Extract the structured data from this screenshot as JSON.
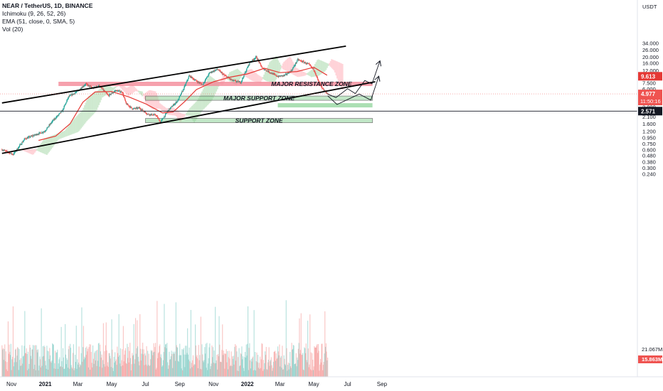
{
  "legend": {
    "symbol": "NEAR / TetherUS, 1D, BINANCE",
    "indicators": [
      "Ichimoku (9, 26, 52, 26)",
      "EMA (51, close, 0, SMA, 5)",
      "Vol (20)"
    ]
  },
  "chart_data": {
    "type": "candlestick",
    "scale": "log",
    "currency_label": "USDT",
    "yticks": [
      "34.000",
      "26.000",
      "20.000",
      "16.000",
      "12.000",
      "9.500",
      "7.500",
      "6.000",
      "4.800",
      "3.800",
      "3.000",
      "2.700",
      "2.100",
      "1.600",
      "1.200",
      "0.950",
      "0.750",
      "0.600",
      "0.480",
      "0.380",
      "0.300",
      "0.240"
    ],
    "ytick_values": [
      34,
      26,
      20,
      16,
      12,
      9.5,
      7.5,
      6,
      4.8,
      3.8,
      3.0,
      2.7,
      2.1,
      1.6,
      1.2,
      0.95,
      0.75,
      0.6,
      0.48,
      0.38,
      0.3,
      0.24
    ],
    "xticks": [
      "Nov",
      "2021",
      "Mar",
      "May",
      "Jul",
      "Sep",
      "Nov",
      "2022",
      "Mar",
      "May",
      "Jul",
      "Sep"
    ],
    "xtick_dates": [
      "2020-11-01",
      "2021-01-01",
      "2021-03-01",
      "2021-05-01",
      "2021-07-01",
      "2021-09-01",
      "2021-11-01",
      "2022-01-01",
      "2022-03-01",
      "2022-05-01",
      "2022-07-01",
      "2022-09-01"
    ],
    "price_path": [
      [
        "2020-10-15",
        0.6
      ],
      [
        "2020-11-04",
        0.5
      ],
      [
        "2020-11-25",
        0.9
      ],
      [
        "2020-12-31",
        1.2
      ],
      [
        "2021-01-15",
        1.8
      ],
      [
        "2021-02-01",
        2.6
      ],
      [
        "2021-02-12",
        4.4
      ],
      [
        "2021-03-01",
        5.5
      ],
      [
        "2021-03-15",
        7.2
      ],
      [
        "2021-03-28",
        6.1
      ],
      [
        "2021-04-08",
        6.8
      ],
      [
        "2021-04-25",
        4.6
      ],
      [
        "2021-05-08",
        5.6
      ],
      [
        "2021-05-20",
        5.3
      ],
      [
        "2021-05-27",
        3.4
      ],
      [
        "2021-06-08",
        2.8
      ],
      [
        "2021-06-20",
        2.9
      ],
      [
        "2021-07-05",
        2.3
      ],
      [
        "2021-07-20",
        2.2
      ],
      [
        "2021-07-28",
        1.7
      ],
      [
        "2021-08-12",
        2.7
      ],
      [
        "2021-08-28",
        3.8
      ],
      [
        "2021-09-08",
        6.0
      ],
      [
        "2021-09-18",
        9.8
      ],
      [
        "2021-10-01",
        8.0
      ],
      [
        "2021-10-12",
        7.0
      ],
      [
        "2021-10-25",
        11.0
      ],
      [
        "2021-11-08",
        12.5
      ],
      [
        "2021-11-20",
        10.0
      ],
      [
        "2021-12-05",
        8.2
      ],
      [
        "2021-12-20",
        7.6
      ],
      [
        "2022-01-05",
        16.0
      ],
      [
        "2022-01-17",
        20.0
      ],
      [
        "2022-01-28",
        13.0
      ],
      [
        "2022-02-12",
        11.0
      ],
      [
        "2022-02-25",
        9.5
      ],
      [
        "2022-03-10",
        10.0
      ],
      [
        "2022-03-22",
        12.0
      ],
      [
        "2022-04-02",
        18.0
      ],
      [
        "2022-04-12",
        16.5
      ],
      [
        "2022-04-22",
        15.0
      ],
      [
        "2022-05-02",
        12.0
      ],
      [
        "2022-05-09",
        8.0
      ],
      [
        "2022-05-16",
        6.0
      ],
      [
        "2022-05-26",
        4.977
      ]
    ],
    "ema_path": [
      [
        "2020-12-20",
        0.85
      ],
      [
        "2021-01-20",
        1.0
      ],
      [
        "2021-02-15",
        1.6
      ],
      [
        "2021-03-10",
        3.6
      ],
      [
        "2021-04-01",
        5.3
      ],
      [
        "2021-05-01",
        5.4
      ],
      [
        "2021-06-01",
        4.4
      ],
      [
        "2021-07-01",
        3.4
      ],
      [
        "2021-08-01",
        2.4
      ],
      [
        "2021-08-20",
        2.5
      ],
      [
        "2021-09-10",
        3.7
      ],
      [
        "2021-10-01",
        5.8
      ],
      [
        "2021-11-01",
        7.8
      ],
      [
        "2021-12-01",
        9.3
      ],
      [
        "2022-01-01",
        10.5
      ],
      [
        "2022-02-01",
        13.0
      ],
      [
        "2022-03-01",
        11.0
      ],
      [
        "2022-04-01",
        11.5
      ],
      [
        "2022-05-01",
        13.5
      ],
      [
        "2022-05-25",
        10.0
      ]
    ],
    "volume_y_labels": [
      "21.067M"
    ],
    "current_price_label": "4.977",
    "countdown_label": "11:50:16",
    "volume_label": "15.863M",
    "extra_price_labels": [
      "9.613",
      "2.571"
    ],
    "reference_line": 2.571,
    "channel": {
      "upper": [
        [
          "2020-10-15",
          3.5
        ],
        [
          "2022-06-28",
          30.0
        ]
      ],
      "lower": [
        [
          "2020-10-15",
          0.52
        ],
        [
          "2022-08-20",
          7.8
        ]
      ]
    },
    "zones": [
      {
        "label": "MAJOR RESISTANCE ZONE",
        "start": "2021-01-25",
        "end": "2022-08-15",
        "low": 7.2,
        "high": 7.8,
        "kind": "resistance"
      },
      {
        "label": "MAJOR SUPPORT ZONE",
        "start": "2021-07-01",
        "end": "2022-08-15",
        "low": 4.0,
        "high": 4.55,
        "kind": "support"
      },
      {
        "label": "",
        "start": "2022-02-25",
        "end": "2022-08-15",
        "low": 3.25,
        "high": 3.48,
        "kind": "support-light"
      },
      {
        "label": "SUPPORT ZONE",
        "start": "2021-07-01",
        "end": "2022-08-15",
        "low": 1.8,
        "high": 1.95,
        "kind": "support"
      }
    ],
    "projections": [
      [
        [
          "2022-05-26",
          4.9
        ],
        [
          "2022-06-10",
          4.3
        ],
        [
          "2022-07-01",
          6.0
        ],
        [
          "2022-07-15",
          5.0
        ],
        [
          "2022-08-01",
          8.2
        ],
        [
          "2022-08-14",
          7.2
        ],
        [
          "2022-08-28",
          16.8
        ]
      ],
      [
        [
          "2022-05-26",
          4.6
        ],
        [
          "2022-06-12",
          3.3
        ],
        [
          "2022-07-22",
          4.9
        ],
        [
          "2022-08-12",
          3.9
        ],
        [
          "2022-08-26",
          9.4
        ]
      ]
    ],
    "colors": {
      "up": "#26a69a",
      "down": "#ef5350",
      "resistance": "#f48a99",
      "support": "#8fd49a",
      "ema": "#e53935",
      "cloud_up": "#c8e6c9",
      "cloud_down": "#ffcdd2"
    }
  }
}
